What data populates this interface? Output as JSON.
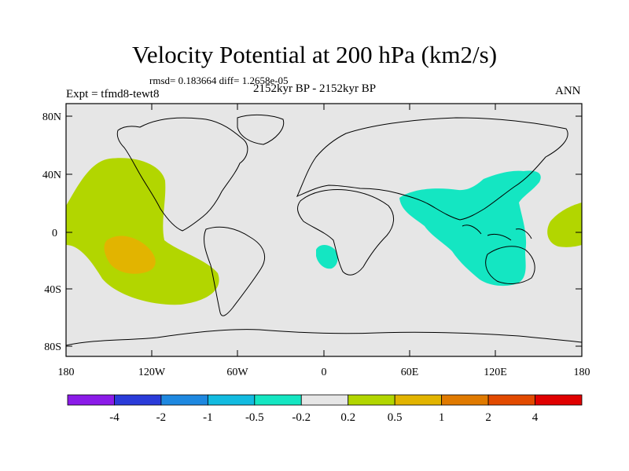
{
  "title": "Velocity Potential at 200 hPa (km2/s)",
  "stats_line": "rmsd= 0.183664 diff= 1.2658e-05",
  "period": "2152kyr BP - 2152kyr BP",
  "experiment": "Expt = tfmd8-tewt8",
  "season": "ANN",
  "y_ticks": [
    "80N",
    "40N",
    "0",
    "40S",
    "80S"
  ],
  "x_ticks": [
    "180",
    "120W",
    "60W",
    "0",
    "60E",
    "120E",
    "180"
  ],
  "colorbar": {
    "colors": [
      "#8b1be8",
      "#2a3bd9",
      "#1e88e0",
      "#12bbe0",
      "#14e6c2",
      "#e6e6e6",
      "#b2d600",
      "#e2b400",
      "#e07a00",
      "#e24a00",
      "#e00000"
    ],
    "labels": [
      "-4",
      "-2",
      "-1",
      "-0.5",
      "-0.2",
      "0.2",
      "0.5",
      "1",
      "2",
      "4"
    ]
  },
  "fields": {
    "ocean_color": "#e6e6e6",
    "positive_color": "#b2d600",
    "strong_positive_color": "#e2b400",
    "negative_color": "#14e6c2"
  }
}
